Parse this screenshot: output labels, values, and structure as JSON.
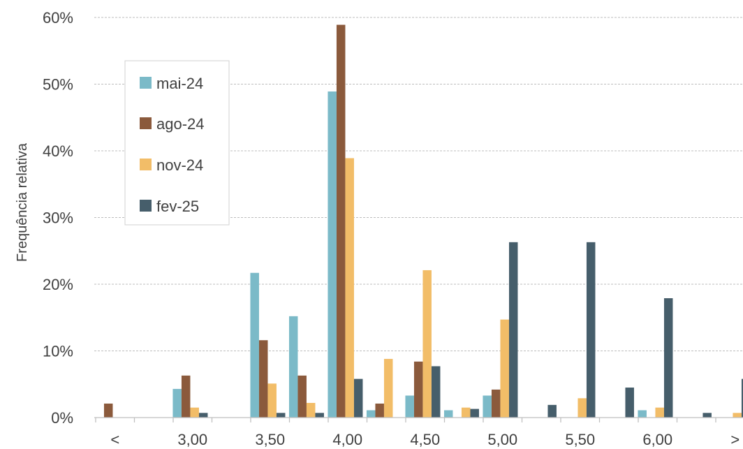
{
  "chart_data": {
    "type": "bar",
    "title": "",
    "xlabel": "",
    "ylabel": "Frequência relativa",
    "ylim": [
      0,
      60
    ],
    "y_unit": "%",
    "y_ticks": [
      0,
      10,
      20,
      30,
      40,
      50,
      60
    ],
    "grid": true,
    "legend_position": "top-left",
    "x_tick_labels": [
      "<",
      "3,00",
      "3,50",
      "4,00",
      "4,50",
      "5,00",
      "5,50",
      "6,00",
      ">"
    ],
    "categories": [
      "<",
      "2,75",
      "3,00",
      "3,25",
      "3,50",
      "3,75",
      "4,00",
      "4,25",
      "4,50",
      "4,75",
      "5,00",
      "5,25",
      "5,50",
      "5,75",
      "6,00",
      "6,25",
      ">"
    ],
    "series": [
      {
        "name": "mai-24",
        "color": "#7bbac8",
        "values": [
          0,
          0,
          4.3,
          0,
          21.7,
          15.2,
          48.9,
          1.1,
          3.3,
          1.1,
          3.3,
          0,
          0,
          0,
          1.1,
          0,
          0
        ]
      },
      {
        "name": "ago-24",
        "color": "#8b5a3c",
        "values": [
          2.1,
          0,
          6.3,
          0,
          11.6,
          6.3,
          58.9,
          2.1,
          8.4,
          0,
          4.2,
          0,
          0,
          0,
          0,
          0,
          0
        ]
      },
      {
        "name": "nov-24",
        "color": "#f2bd68",
        "values": [
          0,
          0,
          1.5,
          0,
          5.1,
          2.2,
          38.9,
          8.8,
          22.1,
          1.5,
          14.7,
          0,
          2.9,
          0,
          1.5,
          0,
          0.7
        ]
      },
      {
        "name": "fev-25",
        "color": "#465e6b",
        "values": [
          0,
          0,
          0.7,
          0,
          0.7,
          0.7,
          5.8,
          0,
          7.7,
          1.3,
          26.3,
          1.9,
          26.3,
          4.5,
          17.9,
          0.7,
          5.8
        ]
      }
    ]
  }
}
